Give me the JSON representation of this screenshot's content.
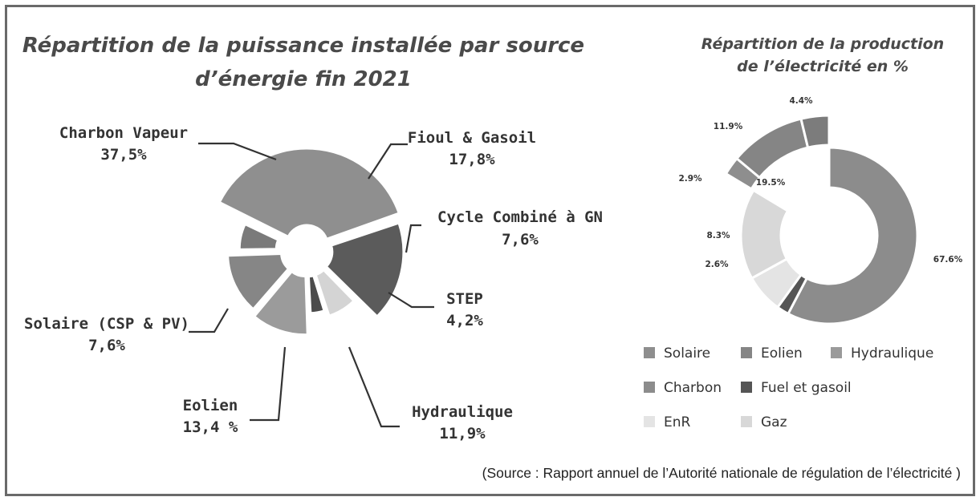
{
  "colors": {
    "border": "#6a6a6a",
    "leader": "#333333",
    "slice_edge": "#ffffff"
  },
  "chart_data": [
    {
      "type": "pie",
      "title_lines": [
        "Répartition de la puissance installée par source",
        "d’énergie fin 2021"
      ],
      "slices": [
        {
          "label": "Charbon Vapeur",
          "value_text": "37,5%",
          "value": 37.5,
          "color": "#8f8f8f"
        },
        {
          "label": "Fioul & Gasoil",
          "value_text": "17,8%",
          "value": 17.8,
          "color": "#5b5b5b"
        },
        {
          "label": "Cycle Combiné à GN",
          "value_text": "7,6%",
          "value": 7.6,
          "color": "#d4d4d4"
        },
        {
          "label": "STEP",
          "value_text": "4,2%",
          "value": 4.2,
          "color": "#4c4c4c"
        },
        {
          "label": "Hydraulique",
          "value_text": "11,9%",
          "value": 11.9,
          "color": "#9b9b9b"
        },
        {
          "label": "Eolien",
          "value_text": "13,4 %",
          "value": 13.4,
          "color": "#868686"
        },
        {
          "label": "Solaire (CSP & PV)",
          "value_text": "7,6%",
          "value": 7.6,
          "color": "#7a7a7a"
        }
      ]
    },
    {
      "type": "pie",
      "title_lines": [
        "Répartition de la production",
        "de l’électricité en %"
      ],
      "slices": [
        {
          "category": "Charbon",
          "value_text": "67.6%",
          "value": 67.6,
          "color": "#8c8c8c"
        },
        {
          "category": "Fuel et gasoil",
          "value_text": "2.6%",
          "value": 2.6,
          "color": "#555555"
        },
        {
          "category": "EnR",
          "value_text": "8.3%",
          "value": 8.3,
          "color": "#e4e4e4"
        },
        {
          "category": "Gaz",
          "value_text": "19.5%",
          "value": 19.5,
          "color": "#d8d8d8"
        },
        {
          "category": "Solaire",
          "value_text": "2.9%",
          "value": 2.9,
          "color": "#8e8e8e"
        },
        {
          "category": "Eolien",
          "value_text": "11.9%",
          "value": 11.9,
          "color": "#858585"
        },
        {
          "category": "Hydraulique",
          "value_text": "4.4%",
          "value": 4.4,
          "color": "#7c7c7c"
        }
      ],
      "legend": [
        {
          "label": "Solaire",
          "color": "#8e8e8e"
        },
        {
          "label": "Eolien",
          "color": "#858585"
        },
        {
          "label": "Hydraulique",
          "color": "#9a9a9a"
        },
        {
          "label": "Charbon",
          "color": "#8c8c8c"
        },
        {
          "label": "Fuel et gasoil",
          "color": "#555555"
        },
        {
          "label": "EnR",
          "color": "#e4e4e4"
        },
        {
          "label": "Gaz",
          "color": "#d8d8d8"
        }
      ]
    }
  ],
  "source": "(Source : Rapport annuel de l’Autorité nationale de régulation de l’électricité )"
}
